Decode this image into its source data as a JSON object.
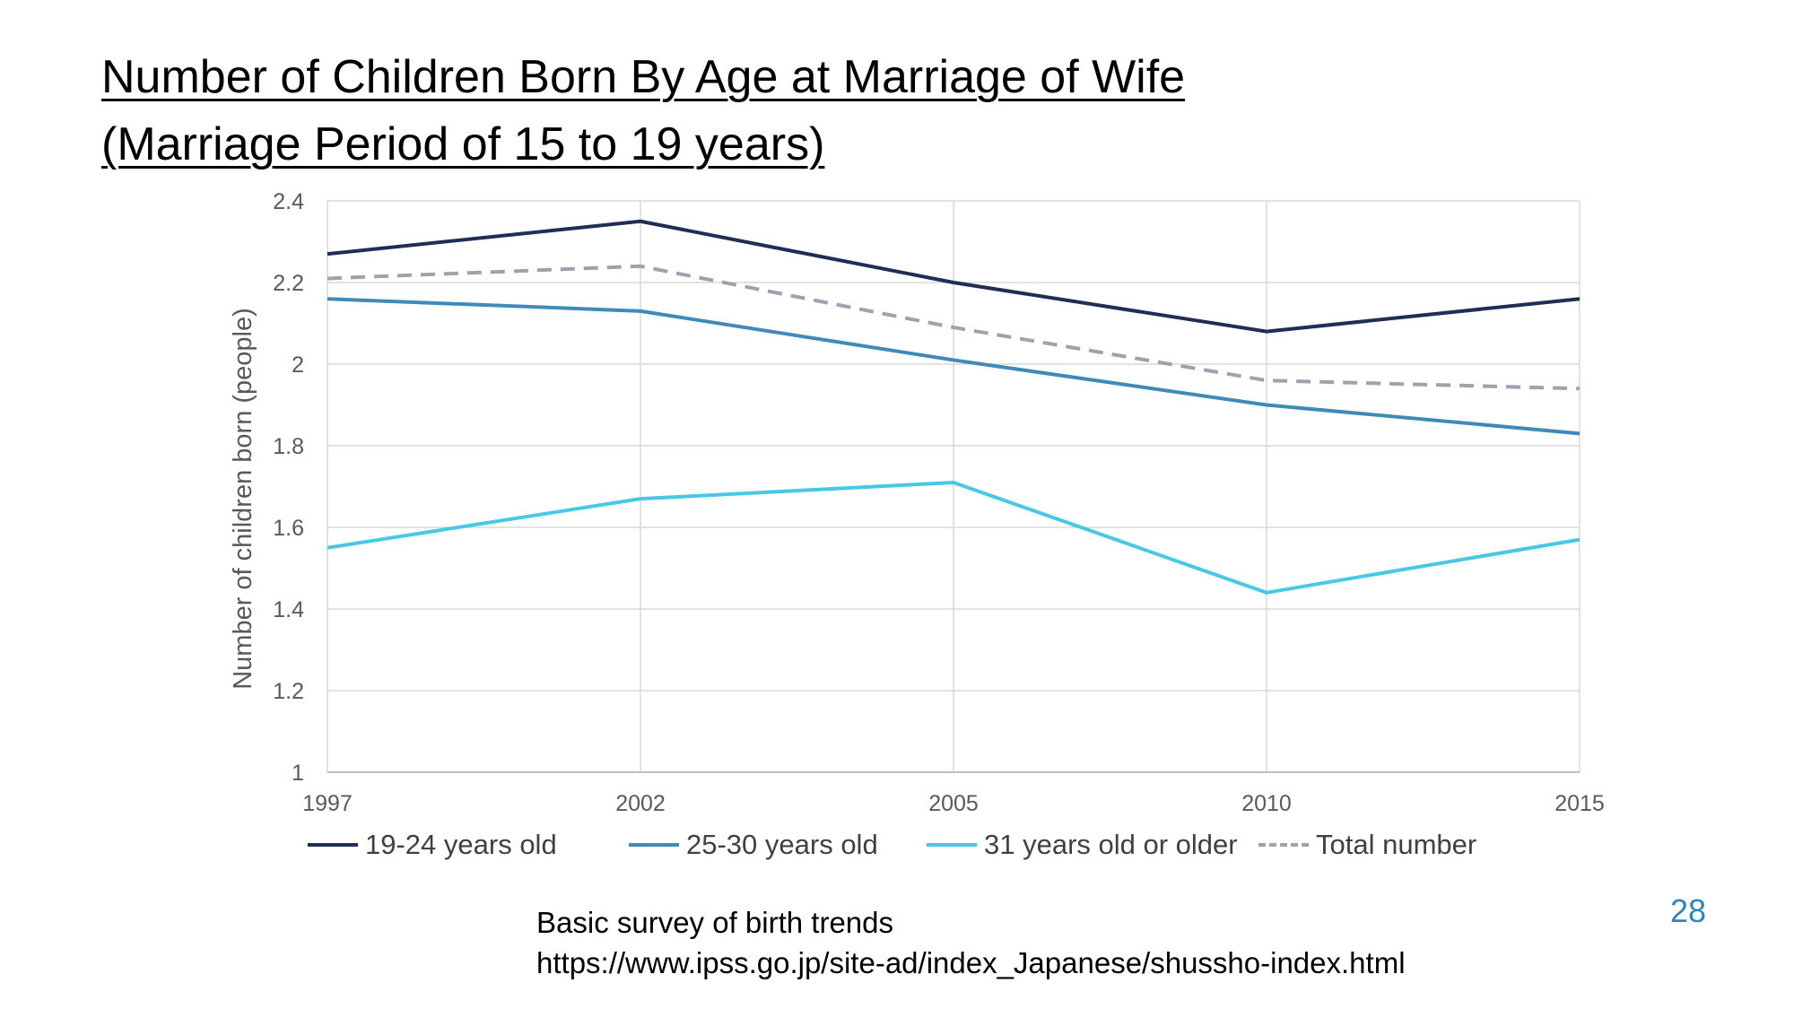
{
  "slide": {
    "title_line1": "Number of Children Born By Age at Marriage of Wife",
    "title_line2": "(Marriage Period of 15 to 19 years)",
    "source_line1": "Basic survey of birth trends",
    "source_line2": "https://www.ipss.go.jp/site-ad/index_Japanese/shussho-index.html",
    "page_number": "28"
  },
  "chart_data": {
    "type": "line",
    "title": "",
    "xlabel": "",
    "ylabel": "Number of children born (people)",
    "x": [
      "1997",
      "2002",
      "2005",
      "2010",
      "2015"
    ],
    "ylim": [
      1,
      2.4
    ],
    "yticks": [
      "1",
      "1.2",
      "1.4",
      "1.6",
      "1.8",
      "2",
      "2.2",
      "2.4"
    ],
    "grid": true,
    "legend_position": "bottom",
    "series": [
      {
        "name": "19-24 years old",
        "values": [
          2.27,
          2.35,
          2.2,
          2.08,
          2.16
        ],
        "color": "#1f2d57",
        "dash": false
      },
      {
        "name": "25-30 years old",
        "values": [
          2.16,
          2.13,
          2.01,
          1.9,
          1.83
        ],
        "color": "#3f8ab6",
        "dash": false
      },
      {
        "name": "31 years old or older",
        "values": [
          1.55,
          1.67,
          1.71,
          1.44,
          1.57
        ],
        "color": "#47c8e4",
        "dash": false
      },
      {
        "name": "Total number",
        "values": [
          2.21,
          2.24,
          2.09,
          1.96,
          1.94
        ],
        "color": "#9aa3ae",
        "dash": true
      }
    ]
  }
}
